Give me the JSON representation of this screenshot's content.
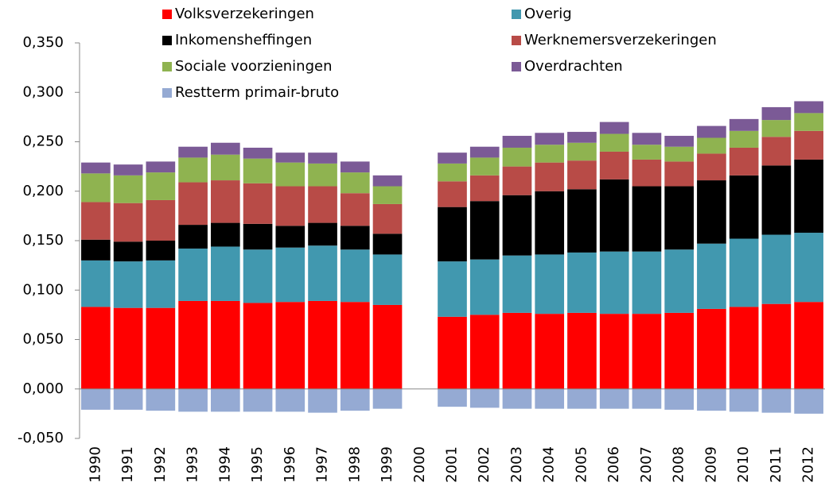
{
  "chart_data": {
    "type": "stacked_bar",
    "categories": [
      "1990",
      "1991",
      "1992",
      "1993",
      "1994",
      "1995",
      "1996",
      "1997",
      "1998",
      "1999",
      "2000",
      "2001",
      "2002",
      "2003",
      "2004",
      "2005",
      "2006",
      "2007",
      "2008",
      "2009",
      "2010",
      "2011",
      "2012"
    ],
    "series": [
      {
        "name": "Volksverzekeringen",
        "color": "#ff0000",
        "values": [
          0.083,
          0.082,
          0.082,
          0.089,
          0.089,
          0.087,
          0.088,
          0.089,
          0.088,
          0.085,
          null,
          0.073,
          0.075,
          0.077,
          0.076,
          0.077,
          0.076,
          0.076,
          0.077,
          0.081,
          0.083,
          0.086,
          0.088
        ]
      },
      {
        "name": "Overig",
        "color": "#4198af",
        "values": [
          0.047,
          0.047,
          0.048,
          0.053,
          0.055,
          0.054,
          0.055,
          0.056,
          0.053,
          0.051,
          null,
          0.056,
          0.056,
          0.058,
          0.06,
          0.061,
          0.063,
          0.063,
          0.064,
          0.066,
          0.069,
          0.07,
          0.07
        ]
      },
      {
        "name": "Inkomensheffingen",
        "color": "#000000",
        "values": [
          0.021,
          0.02,
          0.02,
          0.024,
          0.024,
          0.026,
          0.022,
          0.023,
          0.024,
          0.021,
          null,
          0.055,
          0.059,
          0.061,
          0.064,
          0.064,
          0.073,
          0.066,
          0.064,
          0.064,
          0.064,
          0.07,
          0.074
        ]
      },
      {
        "name": "Werknemersverzekeringen",
        "color": "#b84b47",
        "values": [
          0.038,
          0.039,
          0.041,
          0.043,
          0.043,
          0.041,
          0.04,
          0.037,
          0.033,
          0.03,
          null,
          0.026,
          0.026,
          0.029,
          0.029,
          0.029,
          0.028,
          0.027,
          0.025,
          0.027,
          0.028,
          0.029,
          0.029
        ]
      },
      {
        "name": "Sociale voorzieningen",
        "color": "#8fb350",
        "values": [
          0.029,
          0.028,
          0.028,
          0.025,
          0.026,
          0.025,
          0.024,
          0.023,
          0.021,
          0.018,
          null,
          0.018,
          0.018,
          0.019,
          0.018,
          0.018,
          0.018,
          0.015,
          0.015,
          0.016,
          0.017,
          0.017,
          0.018
        ]
      },
      {
        "name": "Overdrachten",
        "color": "#7b5a96",
        "values": [
          0.011,
          0.011,
          0.011,
          0.011,
          0.012,
          0.011,
          0.01,
          0.011,
          0.011,
          0.011,
          null,
          0.011,
          0.011,
          0.012,
          0.012,
          0.011,
          0.012,
          0.012,
          0.011,
          0.012,
          0.012,
          0.013,
          0.012
        ]
      },
      {
        "name": "Restterm primair-bruto",
        "color": "#95aad3",
        "values": [
          -0.021,
          -0.021,
          -0.022,
          -0.023,
          -0.023,
          -0.023,
          -0.023,
          -0.024,
          -0.022,
          -0.02,
          null,
          -0.018,
          -0.019,
          -0.02,
          -0.02,
          -0.02,
          -0.02,
          -0.02,
          -0.021,
          -0.022,
          -0.023,
          -0.024,
          -0.025
        ]
      }
    ],
    "ylim": [
      -0.05,
      0.35
    ],
    "yticks": [
      {
        "value": -0.05,
        "label": "-0,050"
      },
      {
        "value": 0,
        "label": "0,000"
      },
      {
        "value": 0.05,
        "label": "0,050"
      },
      {
        "value": 0.1,
        "label": "0,100"
      },
      {
        "value": 0.15,
        "label": "0,150"
      },
      {
        "value": 0.2,
        "label": "0,200"
      },
      {
        "value": 0.25,
        "label": "0,250"
      },
      {
        "value": 0.3,
        "label": "0,300"
      },
      {
        "value": 0.35,
        "label": "0,350"
      }
    ],
    "grid": false,
    "legend": "top"
  }
}
